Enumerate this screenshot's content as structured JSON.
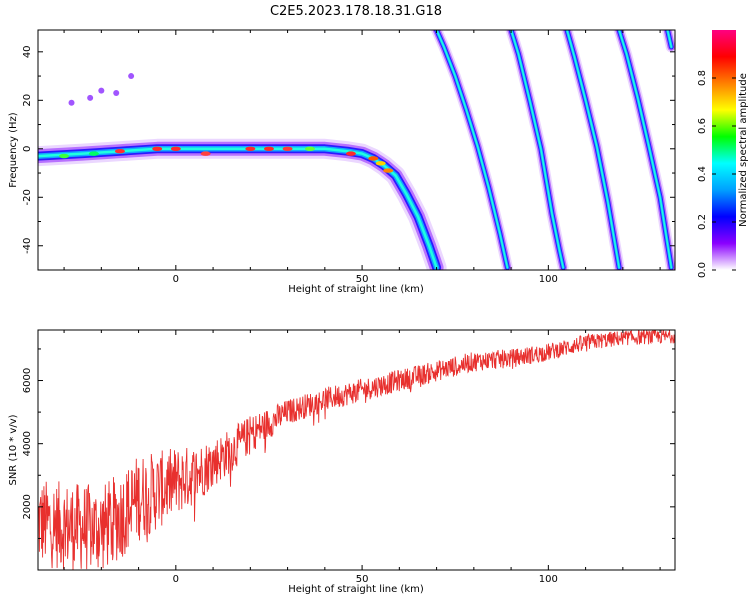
{
  "colors": {
    "snr_line": "#e8302e",
    "spectrogram_cmap": [
      "#ffffff",
      "#8a00ff",
      "#0000ff",
      "#00a0ff",
      "#00ffff",
      "#00ff00",
      "#ffff00",
      "#ff8000",
      "#ff0000",
      "#ff0080"
    ]
  },
  "chart_data": [
    {
      "type": "heatmap",
      "title": "C2E5.2023.178.18.31.G18",
      "xlabel": "Height of straight line (km)",
      "ylabel": "Frequency (Hz)",
      "xlim": [
        -37,
        134
      ],
      "ylim": [
        -50,
        49
      ],
      "x_ticks": [
        0,
        50,
        100
      ],
      "y_ticks": [
        40,
        20,
        0,
        -20,
        -40
      ],
      "colorbar": {
        "label": "Normalized spectral amplitude",
        "range": [
          0,
          1
        ],
        "ticks": [
          "0.0",
          "0.2",
          "0.4",
          "0.6",
          "0.8"
        ]
      },
      "ridges": [
        {
          "x": [
            -37,
            -25,
            -15,
            -5,
            0,
            10,
            20,
            30,
            40,
            46,
            50,
            53,
            56,
            59,
            62,
            65,
            68,
            70
          ],
          "y": [
            -3,
            -2,
            -1,
            0,
            0,
            0,
            0,
            0,
            0,
            -1,
            -2,
            -4,
            -7,
            -11,
            -19,
            -28,
            -40,
            -49
          ]
        },
        {
          "x": [
            70,
            72,
            75,
            78,
            81,
            84,
            87,
            89
          ],
          "y": [
            49,
            42,
            30,
            16,
            1,
            -16,
            -35,
            -49
          ]
        },
        {
          "x": [
            90,
            92,
            95,
            98,
            101,
            103,
            104
          ],
          "y": [
            49,
            39,
            20,
            0,
            -27,
            -42,
            -49
          ]
        },
        {
          "x": [
            105,
            107,
            110,
            113,
            116,
            119
          ],
          "y": [
            49,
            38,
            20,
            1,
            -22,
            -49
          ]
        },
        {
          "x": [
            119,
            121,
            124,
            127,
            130,
            133
          ],
          "y": [
            49,
            39,
            21,
            1,
            -20,
            -49
          ]
        },
        {
          "x": [
            132,
            133
          ],
          "y": [
            49,
            42
          ]
        }
      ],
      "scatter_noise": [
        {
          "x": -23,
          "y": 21
        },
        {
          "x": -20,
          "y": 24
        },
        {
          "x": -28,
          "y": 19
        },
        {
          "x": -12,
          "y": 30
        },
        {
          "x": -16,
          "y": 23
        }
      ]
    },
    {
      "type": "line",
      "xlabel": "Height of straight line (km)",
      "ylabel": "SNR (10 * v/v)",
      "xlim": [
        -37,
        134
      ],
      "ylim": [
        0,
        7600
      ],
      "x_ticks": [
        0,
        50,
        100
      ],
      "y_ticks": [
        2000,
        4000,
        6000
      ],
      "trend": {
        "x": [
          -37,
          -30,
          -20,
          -15,
          -10,
          -5,
          0,
          5,
          10,
          15,
          20,
          30,
          40,
          50,
          60,
          70,
          80,
          90,
          100,
          110,
          120,
          134
        ],
        "y": [
          1500,
          1400,
          1300,
          1700,
          2300,
          2500,
          2800,
          3000,
          3400,
          3800,
          4300,
          5000,
          5400,
          5700,
          6000,
          6300,
          6600,
          6700,
          6900,
          7200,
          7350,
          7400
        ]
      },
      "noise_amplitude": {
        "x": [
          -37,
          -10,
          10,
          30,
          134
        ],
        "y": [
          1400,
          1400,
          800,
          400,
          220
        ]
      }
    }
  ]
}
